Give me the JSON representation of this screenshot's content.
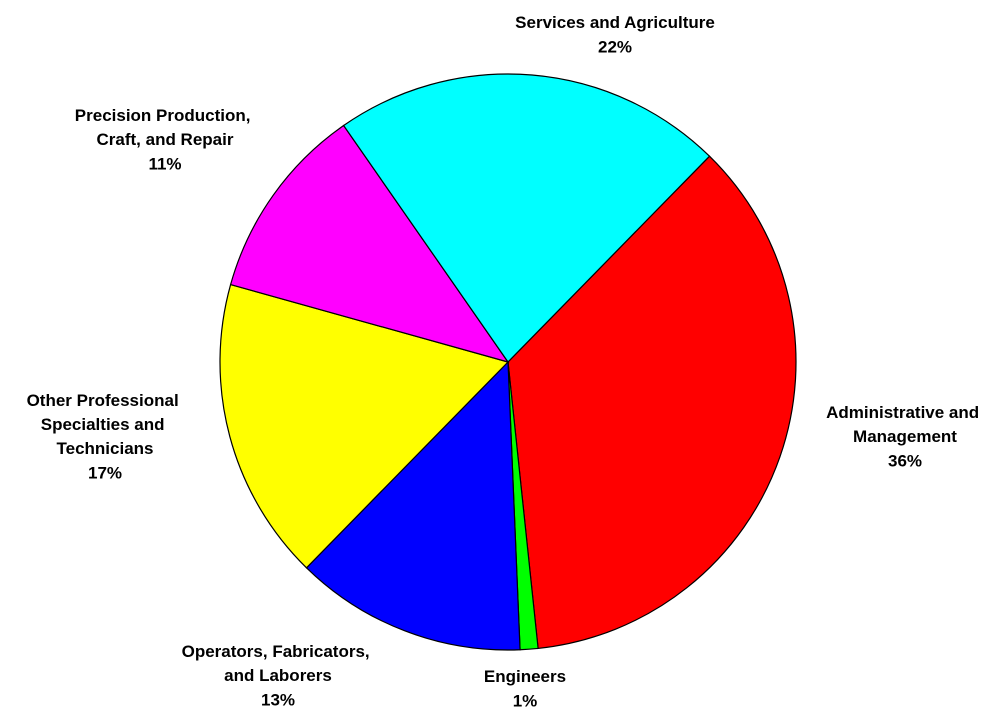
{
  "chart_data": {
    "type": "pie",
    "categories": [
      "Administrative and Management",
      "Engineers",
      "Operators, Fabricators, and Laborers",
      "Other Professional Specialties and Technicians",
      "Precision Production, Craft, and Repair",
      "Services and Agriculture"
    ],
    "values": [
      36,
      1,
      13,
      17,
      11,
      22
    ],
    "value_labels": [
      "36%",
      "1%",
      "13%",
      "17%",
      "11%",
      "22%"
    ],
    "colors": [
      "#ff0000",
      "#00ff00",
      "#0000ff",
      "#ffff00",
      "#ff00ff",
      "#00ffff"
    ]
  }
}
